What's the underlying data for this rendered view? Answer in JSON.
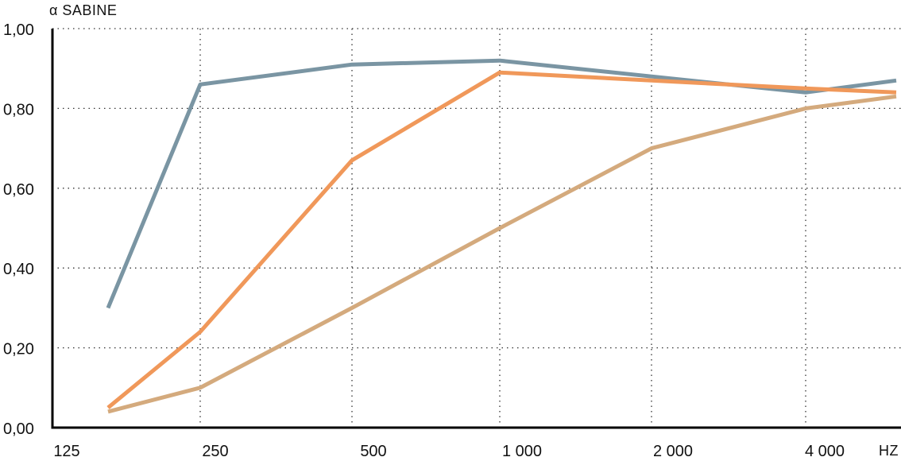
{
  "chart_data": {
    "type": "line",
    "ylabel": "α SABINE",
    "xlabel": "HZ",
    "x_ticks": [
      "125",
      "250",
      "500",
      "1 000",
      "2 000",
      "4 000"
    ],
    "x": [
      "125",
      "250",
      "500",
      "1 000",
      "2 000",
      "4 000",
      ""
    ],
    "ylim": [
      0,
      1
    ],
    "y_ticks": [
      "0,00",
      "0,20",
      "0,40",
      "0,60",
      "0,80",
      "1,00"
    ],
    "grid": true,
    "series": [
      {
        "color": "#7a95a3",
        "values": [
          0.3,
          0.86,
          0.91,
          0.92,
          0.88,
          0.84,
          0.87
        ]
      },
      {
        "color": "#f0985a",
        "values": [
          0.05,
          0.24,
          0.67,
          0.89,
          0.87,
          0.85,
          0.84
        ]
      },
      {
        "color": "#d4aa7d",
        "values": [
          0.04,
          0.1,
          0.3,
          0.5,
          0.7,
          0.8,
          0.83
        ]
      }
    ]
  }
}
